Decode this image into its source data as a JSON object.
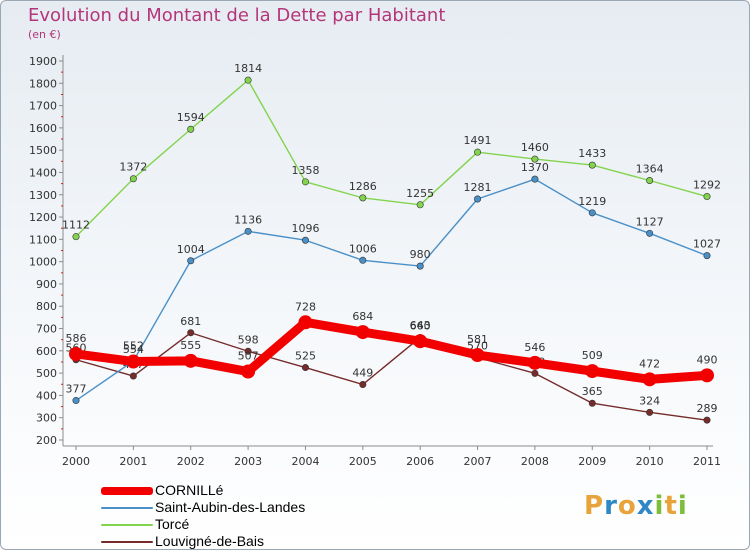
{
  "header": {
    "title": "Evolution du Montant de la Dette par Habitant",
    "subtitle": "(en €)"
  },
  "chart_data": {
    "type": "line",
    "title": "Evolution du Montant de la Dette par Habitant",
    "subtitle": "(en €)",
    "xlabel": "",
    "ylabel": "",
    "x": [
      "2000",
      "2001",
      "2002",
      "2003",
      "2004",
      "2005",
      "2006",
      "2007",
      "2008",
      "2009",
      "2010",
      "2011"
    ],
    "yticks": [
      200,
      300,
      400,
      500,
      600,
      700,
      800,
      900,
      1000,
      1100,
      1200,
      1300,
      1400,
      1500,
      1600,
      1700,
      1800,
      1900
    ],
    "ylim": [
      200,
      1900
    ],
    "grid": false,
    "legend_position": "bottom-left",
    "series": [
      {
        "name": "Louvigné-de-Bais",
        "color": "#772b2b",
        "values": [
          560,
          487,
          681,
          598,
          525,
          449,
          660,
          570,
          499,
          365,
          324,
          289
        ],
        "labels": [
          "560",
          "487",
          "681",
          "598",
          "525",
          "449",
          "660",
          "570",
          "499",
          "365",
          "324",
          "289"
        ]
      },
      {
        "name": "Torcé",
        "color": "#82d44d",
        "values": [
          1112,
          1372,
          1594,
          1814,
          1358,
          1286,
          1255,
          1491,
          1460,
          1433,
          1364,
          1292
        ],
        "labels": [
          "1112",
          "1372",
          "1594",
          "1814",
          "1358",
          "1286",
          "1255",
          "1491",
          "1460",
          "1433",
          "1364",
          "1292"
        ]
      },
      {
        "name": "Saint-Aubin-des-Landes",
        "color": "#4a90c8",
        "values": [
          377,
          554,
          1004,
          1136,
          1096,
          1006,
          980,
          1281,
          1370,
          1219,
          1127,
          1027
        ],
        "labels": [
          "377",
          "554",
          "1004",
          "1136",
          "1096",
          "1006",
          "980",
          "1281",
          "1370",
          "1219",
          "1127",
          "1027"
        ]
      },
      {
        "name": "CORNILLé",
        "color": "#f20000",
        "values": [
          586,
          552,
          555,
          507,
          728,
          684,
          643,
          581,
          546,
          509,
          472,
          490
        ],
        "labels": [
          "586",
          "552",
          "555",
          "507",
          "728",
          "684",
          "643",
          "581",
          "546",
          "509",
          "472",
          "490"
        ]
      }
    ]
  },
  "legend": {
    "items": [
      {
        "label": "CORNILLé",
        "color": "#f20000"
      },
      {
        "label": "Saint-Aubin-des-Landes",
        "color": "#4a90c8"
      },
      {
        "label": "Torcé",
        "color": "#82d44d"
      },
      {
        "label": "Louvigné-de-Bais",
        "color": "#772b2b"
      }
    ]
  },
  "logo": {
    "letters": [
      "P",
      "r",
      "o",
      "x",
      "i",
      "t",
      "i"
    ],
    "colors": [
      "#e8a33a",
      "#2f88c6",
      "#e8a33a",
      "#2f88c6",
      "#7cbd3c",
      "#e8a33a",
      "#7cbd3c"
    ]
  }
}
